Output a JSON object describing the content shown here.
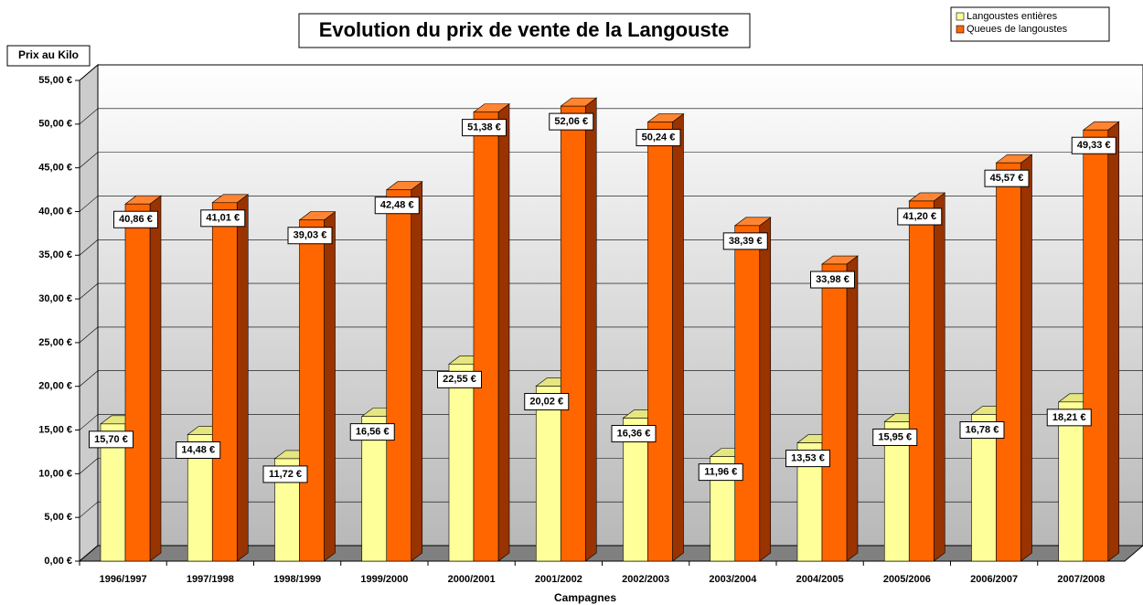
{
  "chart_data": {
    "type": "bar",
    "title": "Evolution du prix de vente de la Langouste",
    "y_label": "Prix au Kilo",
    "x_label": "Campagnes",
    "categories": [
      "1996/1997",
      "1997/1998",
      "1998/1999",
      "1999/2000",
      "2000/2001",
      "2001/2002",
      "2002/2003",
      "2003/2004",
      "2004/2005",
      "2005/2006",
      "2006/2007",
      "2007/2008"
    ],
    "series": [
      {
        "name": "Langoustes entières",
        "color": "#ffff99",
        "values": [
          15.7,
          14.48,
          11.72,
          16.56,
          22.55,
          20.02,
          16.36,
          11.96,
          13.53,
          15.95,
          16.78,
          18.21
        ],
        "value_labels": [
          "15,70 €",
          "14,48 €",
          "11,72 €",
          "16,56 €",
          "22,55 €",
          "20,02 €",
          "16,36 €",
          "11,96 €",
          "13,53 €",
          "15,95 €",
          "16,78 €",
          "18,21 €"
        ]
      },
      {
        "name": "Queues de langoustes",
        "color": "#ff6600",
        "values": [
          40.86,
          41.01,
          39.03,
          42.48,
          51.38,
          52.06,
          50.24,
          38.39,
          33.98,
          41.2,
          45.57,
          49.33
        ],
        "value_labels": [
          "40,86 €",
          "41,01 €",
          "39,03 €",
          "42,48 €",
          "51,38 €",
          "52,06 €",
          "50,24 €",
          "38,39 €",
          "33,98 €",
          "41,20 €",
          "45,57 €",
          "49,33 €"
        ]
      }
    ],
    "ylim": [
      0,
      55
    ],
    "yticks": [
      {
        "value": 0,
        "label": "0,00 €"
      },
      {
        "value": 5,
        "label": "5,00 €"
      },
      {
        "value": 10,
        "label": "10,00 €"
      },
      {
        "value": 15,
        "label": "15,00 €"
      },
      {
        "value": 20,
        "label": "20,00 €"
      },
      {
        "value": 25,
        "label": "25,00 €"
      },
      {
        "value": 30,
        "label": "30,00 €"
      },
      {
        "value": 35,
        "label": "35,00 €"
      },
      {
        "value": 40,
        "label": "40,00 €"
      },
      {
        "value": 45,
        "label": "45,00 €"
      },
      {
        "value": 50,
        "label": "50,00 €"
      },
      {
        "value": 55,
        "label": "55,00 €"
      }
    ],
    "grid": true,
    "legend": "top-right"
  }
}
